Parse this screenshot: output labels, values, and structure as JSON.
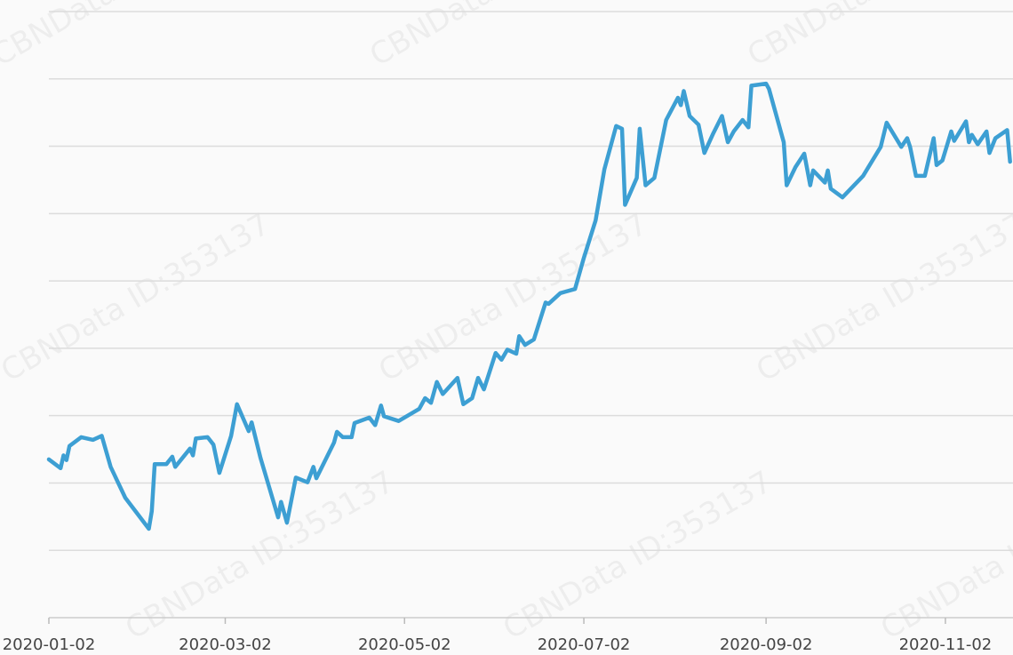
{
  "chart_data": {
    "type": "line",
    "watermark": "CBNData",
    "watermark_id": "CBNData ID:353137",
    "x": [
      "2020-01-02",
      "2020-01-06",
      "2020-01-07",
      "2020-01-08",
      "2020-01-09",
      "2020-01-13",
      "2020-01-17",
      "2020-01-20",
      "2020-01-23",
      "2020-01-28",
      "2020-02-05",
      "2020-02-06",
      "2020-02-07",
      "2020-02-11",
      "2020-02-13",
      "2020-02-14",
      "2020-02-19",
      "2020-02-20",
      "2020-02-21",
      "2020-02-25",
      "2020-02-27",
      "2020-02-29",
      "2020-03-04",
      "2020-03-06",
      "2020-03-10",
      "2020-03-11",
      "2020-03-14",
      "2020-03-20",
      "2020-03-21",
      "2020-03-23",
      "2020-03-26",
      "2020-03-30",
      "2020-04-01",
      "2020-04-02",
      "2020-04-08",
      "2020-04-09",
      "2020-04-11",
      "2020-04-14",
      "2020-04-15",
      "2020-04-20",
      "2020-04-22",
      "2020-04-24",
      "2020-04-25",
      "2020-04-30",
      "2020-05-07",
      "2020-05-09",
      "2020-05-11",
      "2020-05-13",
      "2020-05-15",
      "2020-05-20",
      "2020-05-22",
      "2020-05-25",
      "2020-05-27",
      "2020-05-29",
      "2020-06-02",
      "2020-06-04",
      "2020-06-06",
      "2020-06-09",
      "2020-06-10",
      "2020-06-12",
      "2020-06-15",
      "2020-06-19",
      "2020-06-20",
      "2020-06-24",
      "2020-06-29",
      "2020-07-02",
      "2020-07-06",
      "2020-07-09",
      "2020-07-13",
      "2020-07-15",
      "2020-07-16",
      "2020-07-20",
      "2020-07-21",
      "2020-07-23",
      "2020-07-26",
      "2020-07-30",
      "2020-08-03",
      "2020-08-04",
      "2020-08-05",
      "2020-08-07",
      "2020-08-10",
      "2020-08-12",
      "2020-08-15",
      "2020-08-18",
      "2020-08-20",
      "2020-08-22",
      "2020-08-25",
      "2020-08-27",
      "2020-08-28",
      "2020-09-02",
      "2020-09-03",
      "2020-09-08",
      "2020-09-09",
      "2020-09-12",
      "2020-09-15",
      "2020-09-17",
      "2020-09-18",
      "2020-09-22",
      "2020-09-23",
      "2020-09-24",
      "2020-09-28",
      "2020-10-05",
      "2020-10-11",
      "2020-10-13",
      "2020-10-18",
      "2020-10-20",
      "2020-10-21",
      "2020-10-23",
      "2020-10-26",
      "2020-10-29",
      "2020-10-30",
      "2020-11-01",
      "2020-11-04",
      "2020-11-05",
      "2020-11-09",
      "2020-11-10",
      "2020-11-11",
      "2020-11-13",
      "2020-11-16",
      "2020-11-17",
      "2020-11-19",
      "2020-11-23",
      "2020-11-24"
    ],
    "series": [
      {
        "color": "#3d9fd3",
        "values": [
          2.35,
          2.22,
          2.41,
          2.34,
          2.55,
          2.68,
          2.64,
          2.7,
          2.24,
          1.78,
          1.32,
          1.58,
          2.28,
          2.28,
          2.39,
          2.24,
          2.51,
          2.41,
          2.66,
          2.68,
          2.57,
          2.15,
          2.7,
          3.17,
          2.77,
          2.9,
          2.37,
          1.49,
          1.72,
          1.41,
          2.08,
          2.01,
          2.24,
          2.07,
          2.6,
          2.76,
          2.68,
          2.68,
          2.89,
          2.97,
          2.86,
          3.15,
          2.99,
          2.92,
          3.1,
          3.26,
          3.19,
          3.5,
          3.32,
          3.56,
          3.17,
          3.26,
          3.56,
          3.39,
          3.93,
          3.83,
          3.98,
          3.92,
          4.18,
          4.05,
          4.13,
          4.68,
          4.66,
          4.82,
          4.88,
          5.34,
          5.9,
          6.66,
          7.3,
          7.26,
          6.13,
          6.53,
          7.26,
          6.42,
          6.53,
          7.39,
          7.72,
          7.61,
          7.82,
          7.45,
          7.32,
          6.9,
          7.19,
          7.45,
          7.06,
          7.22,
          7.39,
          7.28,
          7.9,
          7.93,
          7.85,
          7.06,
          6.42,
          6.69,
          6.89,
          6.42,
          6.64,
          6.46,
          6.64,
          6.37,
          6.24,
          6.56,
          6.99,
          7.35,
          6.99,
          7.12,
          6.99,
          6.56,
          6.56,
          7.12,
          6.72,
          6.79,
          7.22,
          7.08,
          7.37,
          7.06,
          7.17,
          7.03,
          7.22,
          6.9,
          7.12,
          7.24,
          6.77
        ]
      }
    ],
    "xlim": [
      "2020-01-02",
      "2020-11-25"
    ],
    "xticks": [
      "2020-01-02",
      "2020-03-02",
      "2020-05-02",
      "2020-07-02",
      "2020-09-02",
      "2020-11-02"
    ],
    "ylim": [
      0,
      9
    ],
    "yticks": [
      1,
      2,
      3,
      4,
      5,
      6,
      7,
      8,
      9
    ],
    "grid": true
  }
}
